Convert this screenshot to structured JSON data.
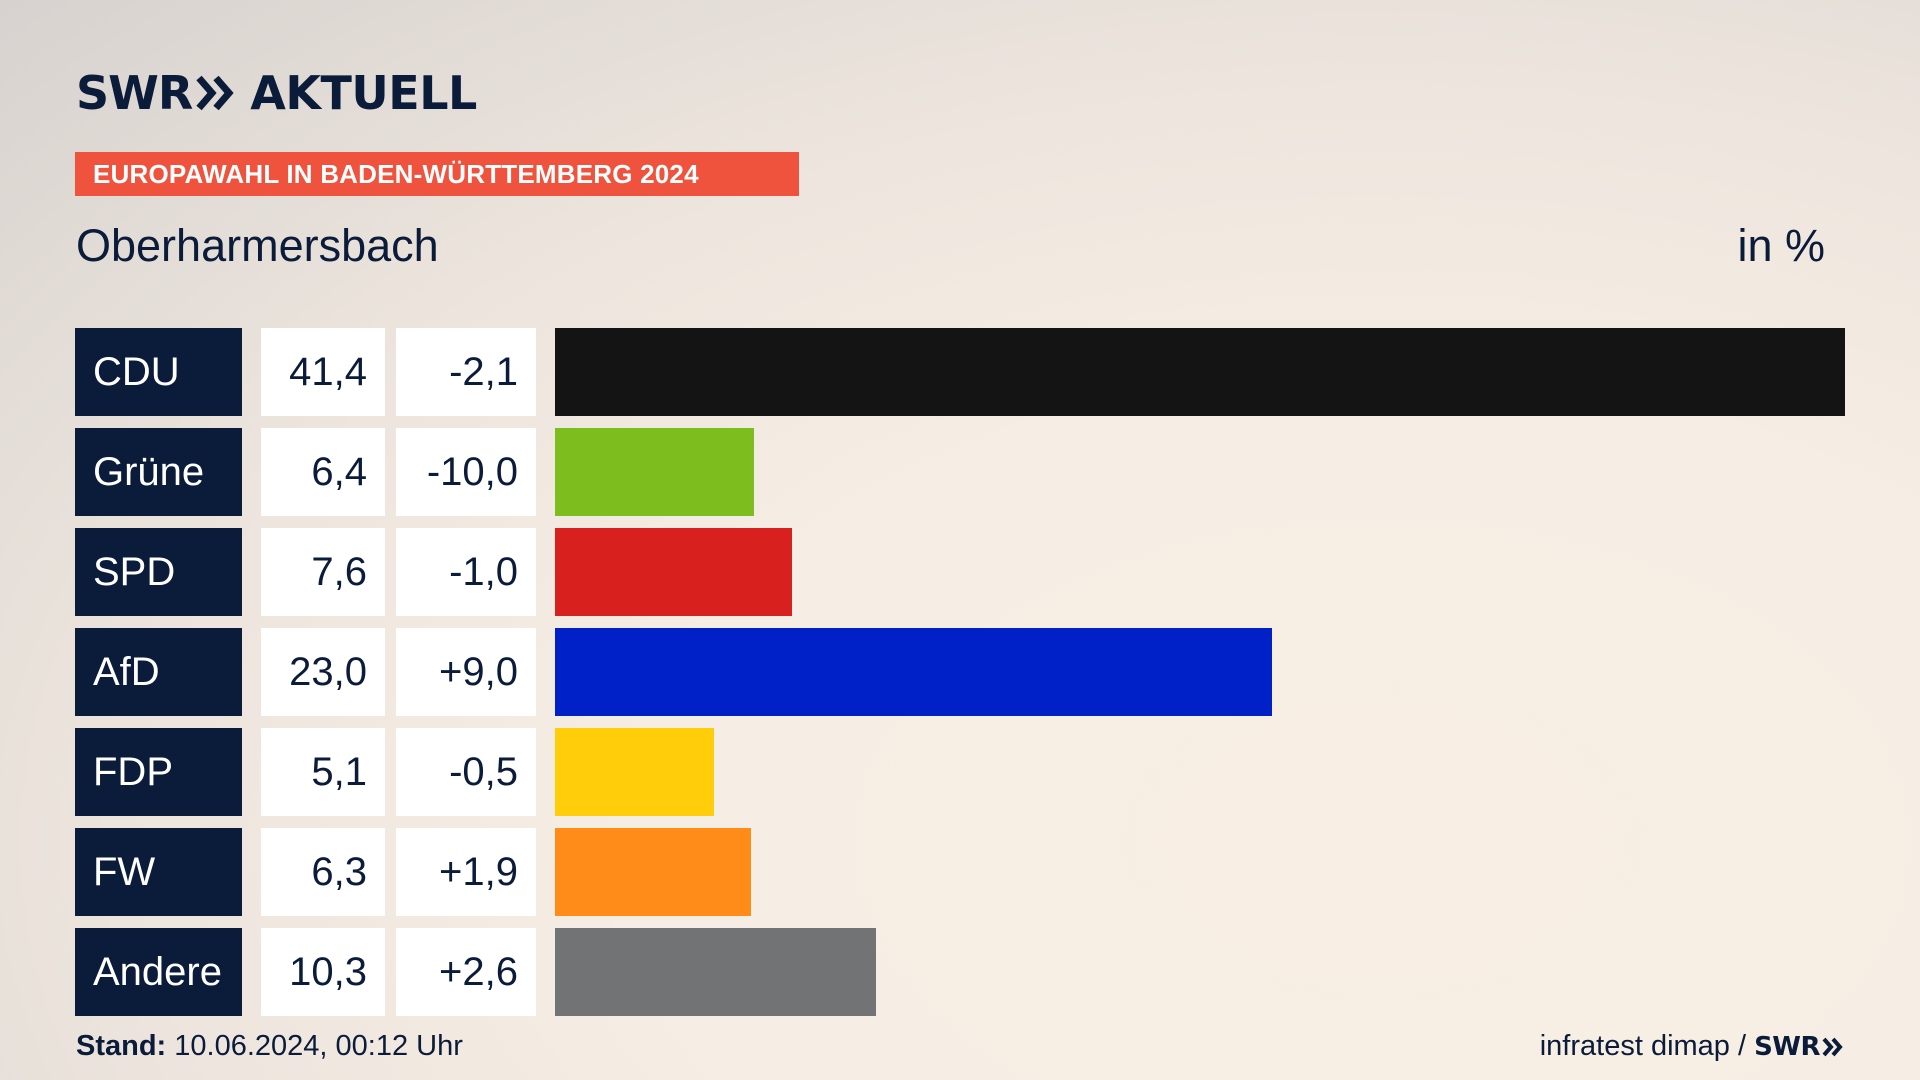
{
  "header": {
    "logo_left": "SWR",
    "logo_right": "AKTUELL",
    "banner": "EUROPAWAHL IN BADEN-WÜRTTEMBERG 2024",
    "place": "Oberharmersbach",
    "unit": "in %"
  },
  "chart_data": {
    "type": "bar",
    "orientation": "horizontal",
    "title": "Oberharmersbach",
    "unit": "in %",
    "xlim": [
      0,
      41.4
    ],
    "categories": [
      "CDU",
      "Grüne",
      "SPD",
      "AfD",
      "FDP",
      "FW",
      "Andere"
    ],
    "values": [
      41.4,
      6.4,
      7.6,
      23.0,
      5.1,
      6.3,
      10.3
    ],
    "value_labels": [
      "41,4",
      "6,4",
      "7,6",
      "23,0",
      "5,1",
      "6,3",
      "10,3"
    ],
    "diff_labels": [
      "-2,1",
      "-10,0",
      "-1,0",
      "+9,0",
      "-0,5",
      "+1,9",
      "+2,6"
    ],
    "colors": [
      "#141414",
      "#7dbd1e",
      "#d8201f",
      "#0020c8",
      "#ffcd0a",
      "#ff8c19",
      "#717374"
    ]
  },
  "footer": {
    "stand_label": "Stand:",
    "stand_value": "10.06.2024, 00:12 Uhr",
    "source": "infratest dimap /",
    "source_logo": "SWR"
  }
}
